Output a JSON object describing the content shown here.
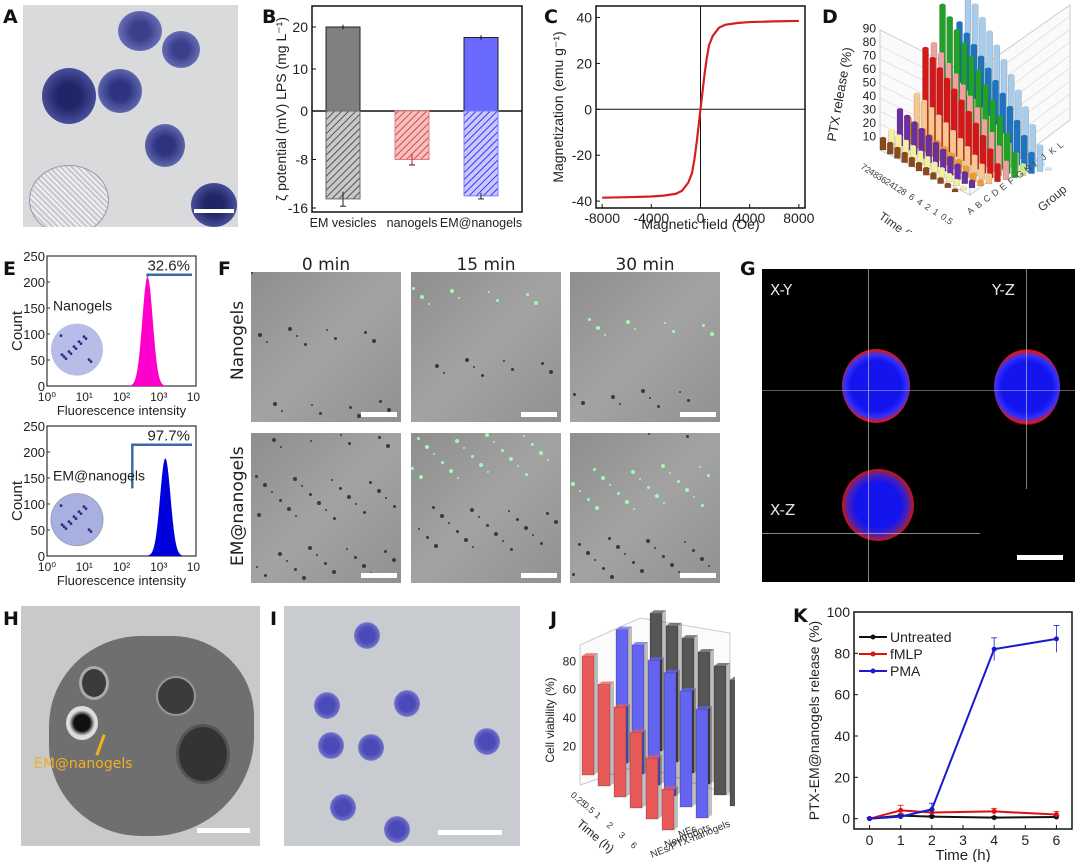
{
  "panels": {
    "A": {
      "label": "A",
      "description": "Micrograph of EM@nanogels with inset schematic"
    },
    "B": {
      "label": "B"
    },
    "C": {
      "label": "C"
    },
    "D": {
      "label": "D"
    },
    "E": {
      "label": "E"
    },
    "F": {
      "label": "F",
      "columns": [
        "0 min",
        "15 min",
        "30 min"
      ],
      "rows": [
        "Nanogels",
        "EM@nanogels"
      ]
    },
    "G": {
      "label": "G",
      "views": [
        "X-Y",
        "Y-Z",
        "X-Z"
      ]
    },
    "H": {
      "label": "H",
      "annotation": "EM@nanogels"
    },
    "I": {
      "label": "I"
    },
    "J": {
      "label": "J"
    },
    "K": {
      "label": "K"
    }
  },
  "chart_data": [
    {
      "id": "B",
      "type": "bar",
      "title": "",
      "ylabel": "ζ potential (mV)  LPS (mg L⁻¹)",
      "xlabel": "",
      "categories": [
        "EM vesicles",
        "nanogels",
        "EM@nanogels"
      ],
      "yticks": [
        "-16",
        "-8",
        "0",
        "10",
        "20"
      ],
      "series": [
        {
          "name": "LPS (mg L⁻¹)",
          "values": [
            20,
            null,
            17.5
          ],
          "errors": [
            0.3,
            null,
            0.3
          ],
          "colors": [
            "#808080",
            null,
            "#6a6aff"
          ]
        },
        {
          "name": "ζ potential (mV)",
          "values": [
            -14.5,
            -8.0,
            -14.0
          ],
          "errors": [
            1.2,
            0.9,
            0.5
          ],
          "colors": [
            "#6b6b6b",
            "#e8787a",
            "#7a7aff"
          ],
          "pattern": "hatched"
        }
      ]
    },
    {
      "id": "C",
      "type": "line",
      "xlabel": "Magnetic field (Oe)",
      "ylabel": "Magnetization (emu g⁻¹)",
      "xlim": [
        -8500,
        8500
      ],
      "ylim": [
        -43,
        45
      ],
      "xticks": [
        "-8000",
        "-4000",
        "0",
        "4000",
        "8000"
      ],
      "yticks": [
        "-40",
        "-20",
        "0",
        "20",
        "40"
      ],
      "series": [
        {
          "name": "hysteresis",
          "color": "#d42020",
          "x": [
            -8000,
            -6000,
            -4000,
            -3000,
            -2000,
            -1500,
            -1000,
            -700,
            -500,
            -300,
            -150,
            0,
            150,
            300,
            500,
            700,
            1000,
            1500,
            2000,
            3000,
            4000,
            6000,
            8000
          ],
          "y": [
            -38.5,
            -38.3,
            -38,
            -37.6,
            -36.8,
            -35.5,
            -32,
            -28,
            -22,
            -14,
            -7,
            0,
            7,
            14,
            22,
            28,
            32,
            35.5,
            36.8,
            37.6,
            38,
            38.3,
            38.5
          ]
        }
      ]
    },
    {
      "id": "D",
      "type": "bar3d",
      "ylabel": "PTX release (%)",
      "xlabel": "Time (h)",
      "zlabel": "Group",
      "yticks": [
        "10",
        "20",
        "30",
        "40",
        "50",
        "60",
        "70",
        "80",
        "90"
      ],
      "time": [
        "0.5",
        "1",
        "2",
        "4",
        "6",
        "8",
        "12",
        "24",
        "36",
        "48",
        "72"
      ],
      "groups": [
        "A",
        "B",
        "C",
        "D",
        "E",
        "F",
        "G",
        "H",
        "I",
        "J",
        "K",
        "L"
      ],
      "group_colors": [
        "#8a4a1c",
        "#f4efa0",
        "#6a2fa0",
        "#f29a2c",
        "#f6c890",
        "#d41818",
        "#f0a0a0",
        "#22a02a",
        "#c8e890",
        "#1f74c0",
        "#a8cceb",
        "#d8e8f8"
      ],
      "final_release_72h": [
        8,
        12,
        25,
        18,
        33,
        63,
        65,
        90,
        40,
        75,
        95,
        5
      ]
    },
    {
      "id": "E-top",
      "type": "area",
      "title": "Nanogels",
      "xlabel": "Fluorescence intensity",
      "ylabel": "Count",
      "xscale": "log",
      "xticks": [
        "10⁰",
        "10¹",
        "10²",
        "10³",
        "10⁴"
      ],
      "yticks": [
        "0",
        "50",
        "100",
        "150",
        "200",
        "250"
      ],
      "ylim": [
        0,
        250
      ],
      "gate_label": "32.6%",
      "peak": {
        "x": 500,
        "y": 210
      },
      "color": "#ff00cc"
    },
    {
      "id": "E-bottom",
      "type": "area",
      "title": "EM@nanogels",
      "xlabel": "Fluorescence intensity",
      "ylabel": "Count",
      "xscale": "log",
      "xticks": [
        "10⁰",
        "10¹",
        "10²",
        "10³",
        "10⁴"
      ],
      "yticks": [
        "0",
        "50",
        "100",
        "150",
        "200",
        "250"
      ],
      "ylim": [
        0,
        250
      ],
      "gate_label": "97.7%",
      "peak": {
        "x": 1500,
        "y": 188
      },
      "color": "#0000dd"
    },
    {
      "id": "J",
      "type": "bar3d",
      "ylabel": "Cell viability (%)",
      "xlabel": "Time (h)",
      "yticks": [
        "20",
        "40",
        "60",
        "80"
      ],
      "time": [
        "0.25",
        "0.5",
        "1",
        "2",
        "3",
        "6"
      ],
      "groups": [
        "NEs/PTX-nanogels",
        "Neutrobots",
        "NEs"
      ],
      "series": [
        {
          "name": "NEs/PTX-nanogels",
          "color": "#e85a5a",
          "values": [
            82,
            70,
            62,
            52,
            42,
            28
          ]
        },
        {
          "name": "Neutrobots",
          "color": "#6464f0",
          "values": [
            92,
            89,
            86,
            85,
            80,
            75
          ]
        },
        {
          "name": "NEs",
          "color": "#555555",
          "values": [
            95,
            94,
            93,
            91,
            89,
            87
          ]
        }
      ]
    },
    {
      "id": "K",
      "type": "line",
      "xlabel": "Time (h)",
      "ylabel": "PTX-EM@nanogels release (%)",
      "xlim": [
        -0.5,
        6.5
      ],
      "ylim": [
        -5,
        100
      ],
      "xticks": [
        "0",
        "1",
        "2",
        "3",
        "4",
        "5",
        "6"
      ],
      "yticks": [
        "0",
        "20",
        "40",
        "60",
        "80",
        "100"
      ],
      "legend": "top-left",
      "x": [
        0,
        1,
        2,
        4,
        6
      ],
      "series": [
        {
          "name": "Untreated",
          "color": "#111111",
          "values": [
            0,
            1.5,
            1,
            0.5,
            0.8
          ],
          "errors": [
            0.5,
            0.8,
            0.6,
            0.5,
            0.6
          ]
        },
        {
          "name": "fMLP",
          "color": "#dd1111",
          "values": [
            0,
            4,
            3,
            3.5,
            2
          ],
          "errors": [
            0.5,
            2.5,
            1.2,
            1.5,
            1.5
          ]
        },
        {
          "name": "PMA",
          "color": "#1a1acc",
          "values": [
            0,
            1,
            4.5,
            82,
            87
          ],
          "errors": [
            0.5,
            0.8,
            3,
            5.5,
            6.5
          ]
        }
      ]
    }
  ]
}
